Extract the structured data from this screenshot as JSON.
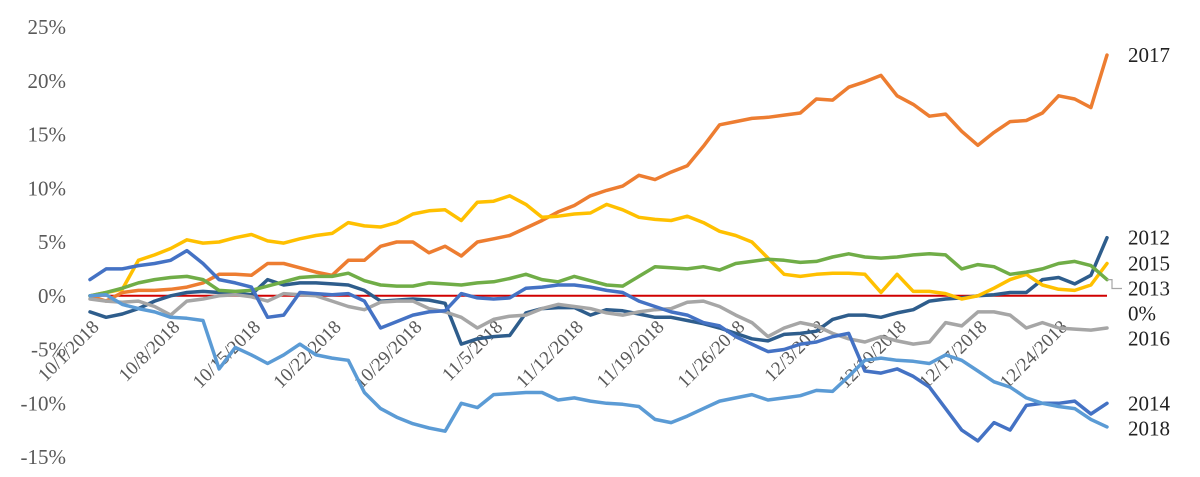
{
  "chart_data": {
    "type": "line",
    "title": "",
    "xlabel": "",
    "ylabel": "",
    "ylim": [
      -15,
      25
    ],
    "yticks": [
      25,
      20,
      15,
      10,
      5,
      0,
      -5,
      -10,
      -15
    ],
    "ytick_labels": [
      "25%",
      "20%",
      "15%",
      "10%",
      "5%",
      "0%",
      "-5%",
      "-10%",
      "-15%"
    ],
    "x_count": 64,
    "xtick_positions": [
      0,
      5,
      10,
      15,
      20,
      25,
      30,
      35,
      40,
      45,
      50,
      55,
      60
    ],
    "xtick_labels": [
      "10/1/2018",
      "10/8/2018",
      "10/15/2018",
      "10/22/2018",
      "10/29/2018",
      "11/5/2018",
      "11/12/2018",
      "11/19/2018",
      "11/26/2018",
      "12/3/2018",
      "12/10/2018",
      "12/17/2018",
      "12/24/2018"
    ],
    "zero_line": {
      "value": 0,
      "color": "#d00000"
    },
    "series": [
      {
        "name": "2017",
        "color": "#ed7d31",
        "values": [
          0,
          -0.5,
          0.3,
          0.5,
          0.5,
          0.6,
          0.8,
          1.2,
          2.0,
          2.0,
          1.9,
          3.0,
          3.0,
          2.6,
          2.2,
          1.9,
          3.3,
          3.3,
          4.6,
          5.0,
          5.0,
          4.0,
          4.6,
          3.7,
          5.0,
          5.3,
          5.6,
          6.3,
          7.0,
          7.8,
          8.4,
          9.3,
          9.8,
          10.2,
          11.2,
          10.8,
          11.5,
          12.1,
          13.9,
          15.9,
          16.2,
          16.5,
          16.6,
          16.8,
          17.0,
          18.3,
          18.2,
          19.4,
          19.9,
          20.5,
          18.6,
          17.8,
          16.7,
          16.9,
          15.3,
          14.0,
          15.2,
          16.2,
          16.3,
          17.0,
          18.6,
          18.3,
          17.5,
          22.4
        ]
      },
      {
        "name": "2012",
        "color": "#2e5d8c",
        "values": [
          -1.5,
          -2.0,
          -1.7,
          -1.2,
          -0.5,
          0.0,
          0.3,
          0.4,
          0.3,
          0.2,
          0.1,
          1.5,
          1.0,
          1.2,
          1.2,
          1.1,
          1.0,
          0.5,
          -0.5,
          -0.4,
          -0.3,
          -0.4,
          -0.7,
          -4.5,
          -4.0,
          -3.8,
          -3.7,
          -1.6,
          -1.2,
          -1.1,
          -1.1,
          -1.8,
          -1.3,
          -1.4,
          -1.7,
          -2.0,
          -2.0,
          -2.3,
          -2.6,
          -3.0,
          -3.5,
          -4.0,
          -4.2,
          -3.6,
          -3.5,
          -3.3,
          -2.2,
          -1.8,
          -1.8,
          -2.0,
          -1.6,
          -1.3,
          -0.5,
          -0.3,
          -0.2,
          0.0,
          0.1,
          0.3,
          0.3,
          1.5,
          1.7,
          1.1,
          1.9,
          5.4
        ]
      },
      {
        "name": "2015",
        "color": "#ffc000",
        "values": [
          0,
          0.3,
          0.6,
          3.3,
          3.8,
          4.4,
          5.2,
          4.9,
          5.0,
          5.4,
          5.7,
          5.1,
          4.9,
          5.3,
          5.6,
          5.8,
          6.8,
          6.5,
          6.4,
          6.8,
          7.6,
          7.9,
          8.0,
          7.0,
          8.7,
          8.8,
          9.3,
          8.5,
          7.3,
          7.4,
          7.6,
          7.7,
          8.5,
          8.0,
          7.3,
          7.1,
          7.0,
          7.4,
          6.8,
          6.0,
          5.6,
          5.0,
          3.5,
          2.0,
          1.8,
          2.0,
          2.1,
          2.1,
          2.0,
          0.3,
          2.0,
          0.4,
          0.4,
          0.2,
          -0.3,
          0.0,
          0.7,
          1.5,
          2.0,
          1.0,
          0.6,
          0.5,
          1.0,
          3.0
        ]
      },
      {
        "name": "2013",
        "color": "#70ad47",
        "values": [
          0,
          0.3,
          0.7,
          1.2,
          1.5,
          1.7,
          1.8,
          1.5,
          0.5,
          0.4,
          0.5,
          0.9,
          1.3,
          1.7,
          1.8,
          1.8,
          2.1,
          1.4,
          1.0,
          0.9,
          0.9,
          1.2,
          1.1,
          1.0,
          1.2,
          1.3,
          1.6,
          2.0,
          1.5,
          1.3,
          1.8,
          1.4,
          1.0,
          0.9,
          1.8,
          2.7,
          2.6,
          2.5,
          2.7,
          2.4,
          3.0,
          3.2,
          3.4,
          3.3,
          3.1,
          3.2,
          3.6,
          3.9,
          3.6,
          3.5,
          3.6,
          3.8,
          3.9,
          3.8,
          2.5,
          2.9,
          2.7,
          2.0,
          2.2,
          2.5,
          3.0,
          3.2,
          2.8,
          1.5
        ]
      },
      {
        "name": "0%",
        "color": "#d00000",
        "values": []
      },
      {
        "name": "2016",
        "color": "#a6a6a6",
        "values": [
          -0.3,
          -0.5,
          -0.6,
          -0.5,
          -1.0,
          -1.8,
          -0.5,
          -0.3,
          0,
          0.1,
          -0.1,
          -0.5,
          0.2,
          0.1,
          0,
          -0.5,
          -1.0,
          -1.3,
          -0.6,
          -0.5,
          -0.5,
          -1.2,
          -1.5,
          -2.0,
          -3.0,
          -2.2,
          -1.9,
          -1.8,
          -1.2,
          -0.8,
          -1.0,
          -1.2,
          -1.6,
          -1.8,
          -1.5,
          -1.3,
          -1.2,
          -0.6,
          -0.5,
          -1.0,
          -1.8,
          -2.5,
          -3.8,
          -3.0,
          -2.5,
          -2.8,
          -3.5,
          -4.0,
          -4.3,
          -3.8,
          -4.2,
          -4.5,
          -4.3,
          -2.5,
          -2.8,
          -1.5,
          -1.5,
          -1.8,
          -3.0,
          -2.5,
          -3.0,
          -3.1,
          -3.2,
          -3.0
        ]
      },
      {
        "name": "2014",
        "color": "#4472c4",
        "values": [
          1.5,
          2.5,
          2.5,
          2.8,
          3.0,
          3.3,
          4.2,
          3.0,
          1.5,
          1.2,
          0.8,
          -2.0,
          -1.8,
          0.3,
          0.2,
          0.1,
          0.2,
          -0.5,
          -3.0,
          -2.4,
          -1.8,
          -1.5,
          -1.4,
          0.2,
          -0.2,
          -0.3,
          -0.2,
          0.7,
          0.8,
          1.0,
          1.0,
          0.8,
          0.5,
          0.3,
          -0.5,
          -1.0,
          -1.5,
          -1.8,
          -2.5,
          -2.8,
          -3.8,
          -4.5,
          -5.2,
          -5.0,
          -4.5,
          -4.3,
          -3.8,
          -3.5,
          -7.0,
          -7.2,
          -6.8,
          -7.5,
          -8.5,
          -10.5,
          -12.5,
          -13.5,
          -11.8,
          -12.5,
          -10.2,
          -10.0,
          -10.0,
          -9.8,
          -11.0,
          -10.0
        ]
      },
      {
        "name": "2018",
        "color": "#5b9bd5",
        "values": [
          0,
          0.1,
          -0.8,
          -1.2,
          -1.5,
          -2.0,
          -2.1,
          -2.3,
          -6.8,
          -4.8,
          -5.5,
          -6.3,
          -5.5,
          -4.5,
          -5.5,
          -5.8,
          -6.0,
          -9.0,
          -10.5,
          -11.3,
          -11.9,
          -12.3,
          -12.6,
          -10.0,
          -10.4,
          -9.2,
          -9.1,
          -9.0,
          -9.0,
          -9.7,
          -9.5,
          -9.8,
          -10.0,
          -10.1,
          -10.3,
          -11.5,
          -11.8,
          -11.2,
          -10.5,
          -9.8,
          -9.5,
          -9.2,
          -9.7,
          -9.5,
          -9.3,
          -8.8,
          -8.9,
          -7.5,
          -6.0,
          -5.8,
          -6.0,
          -6.1,
          -6.3,
          -5.5,
          -6.0,
          -7.0,
          -8.0,
          -8.5,
          -9.5,
          -10.0,
          -10.3,
          -10.5,
          -11.5,
          -12.2
        ]
      }
    ],
    "end_labels": [
      {
        "series": "2017",
        "text": "2017",
        "leader": false
      },
      {
        "series": "2012",
        "text": "2012",
        "leader": true
      },
      {
        "series": "2015",
        "text": "2015",
        "leader": true
      },
      {
        "series": "2013",
        "text": "2013",
        "leader": true
      },
      {
        "series": "0%",
        "text": "0%",
        "leader": false
      },
      {
        "series": "2016",
        "text": "2016",
        "leader": false
      },
      {
        "series": "2014",
        "text": "2014",
        "leader": false
      },
      {
        "series": "2018",
        "text": "2018",
        "leader": false
      }
    ]
  }
}
